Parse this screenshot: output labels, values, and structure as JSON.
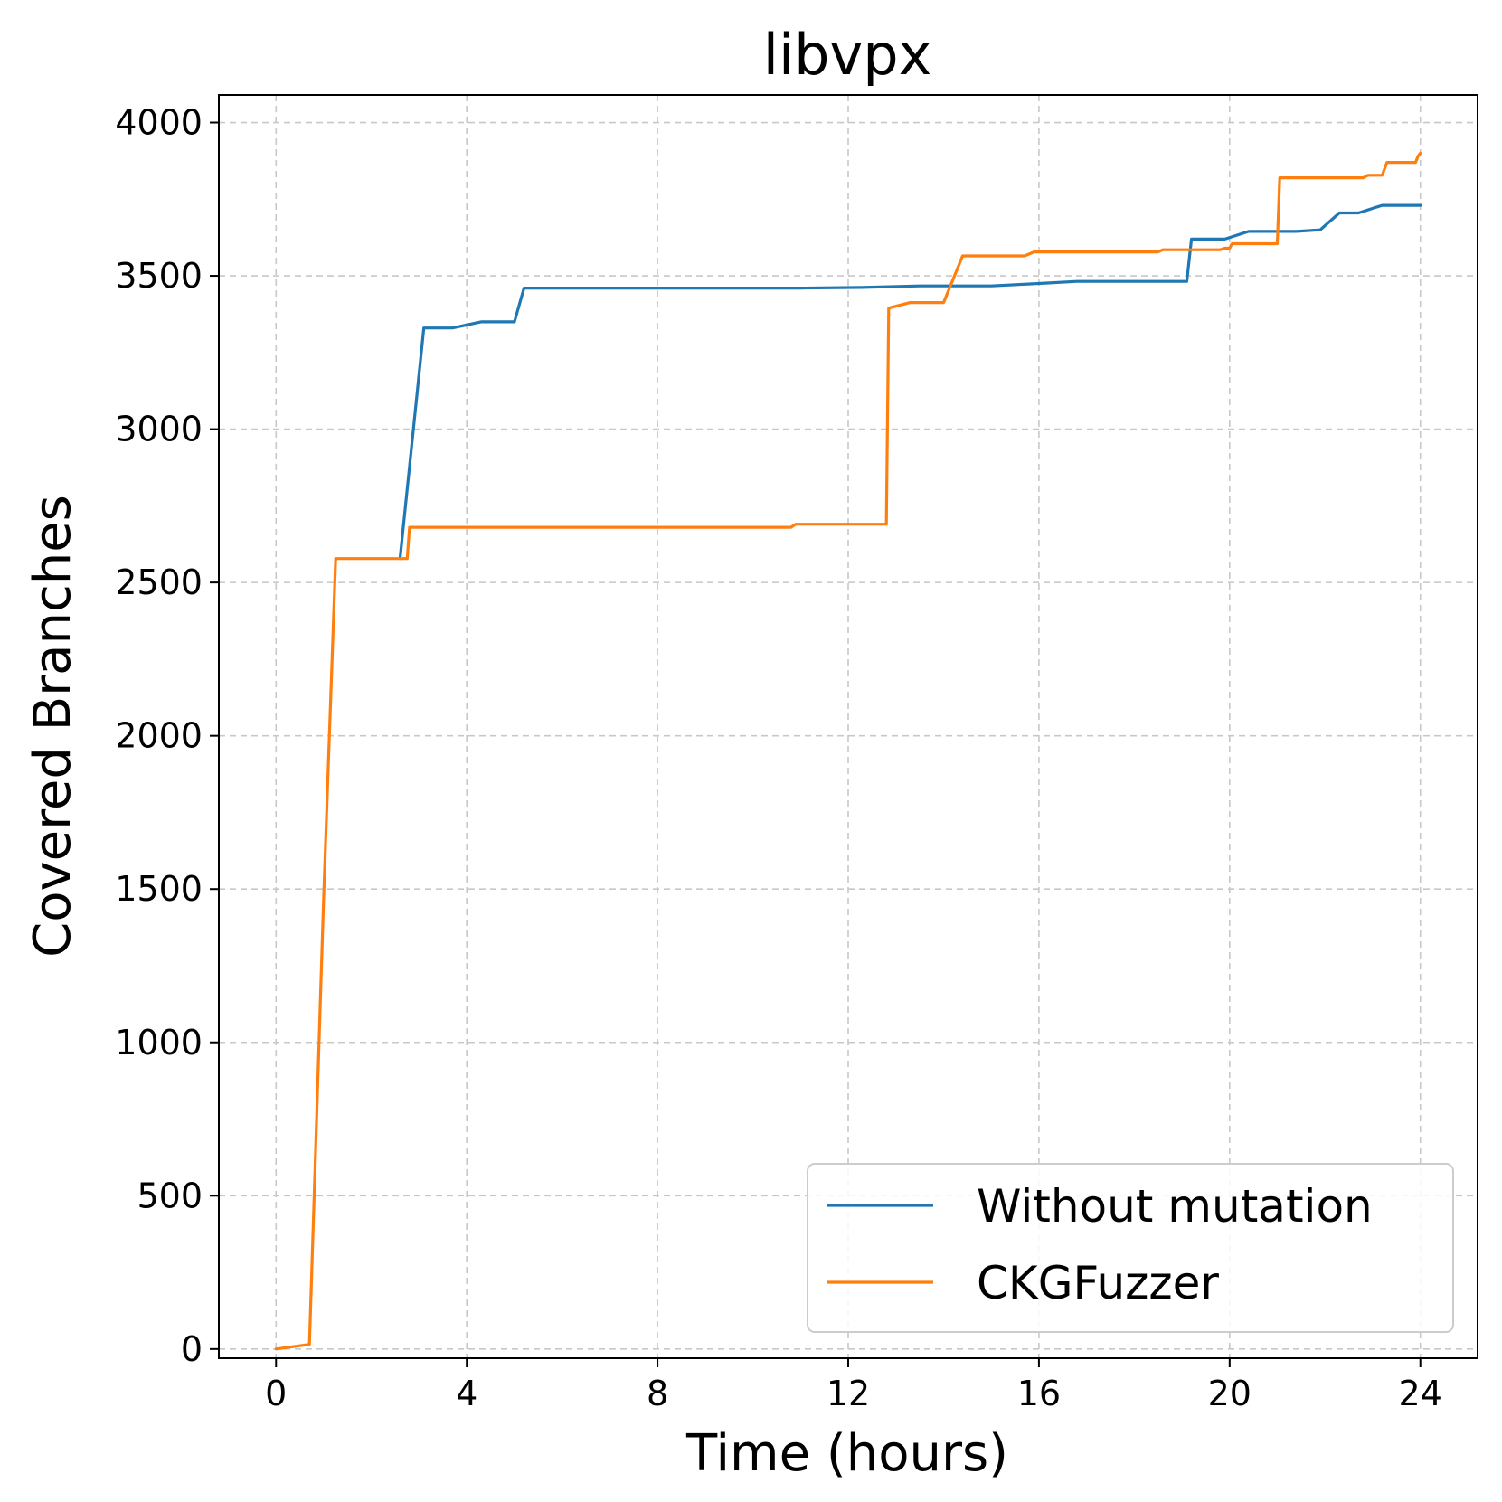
{
  "chart_data": {
    "type": "line",
    "title": "libvpx",
    "xlabel": "Time (hours)",
    "ylabel": "Covered Branches",
    "xlim": [
      -1.2,
      25.2
    ],
    "ylim": [
      -30,
      4090
    ],
    "xticks": [
      0,
      4,
      8,
      12,
      16,
      20,
      24
    ],
    "yticks": [
      0,
      500,
      1000,
      1500,
      2000,
      2500,
      3000,
      3500,
      4000
    ],
    "grid": true,
    "legend_position": "lower-right",
    "series": [
      {
        "name": "Without mutation",
        "color": "#1f77b4",
        "points": [
          [
            2.6,
            2578
          ],
          [
            3.1,
            3330
          ],
          [
            3.7,
            3330
          ],
          [
            4.3,
            3350
          ],
          [
            5.0,
            3350
          ],
          [
            5.2,
            3460
          ],
          [
            8.0,
            3460
          ],
          [
            11.0,
            3460
          ],
          [
            12.3,
            3462
          ],
          [
            13.5,
            3467
          ],
          [
            15.0,
            3467
          ],
          [
            16.0,
            3475
          ],
          [
            16.8,
            3482
          ],
          [
            19.1,
            3482
          ],
          [
            19.2,
            3620
          ],
          [
            19.9,
            3620
          ],
          [
            20.4,
            3645
          ],
          [
            21.4,
            3645
          ],
          [
            21.9,
            3650
          ],
          [
            22.3,
            3705
          ],
          [
            22.7,
            3705
          ],
          [
            23.2,
            3730
          ],
          [
            24.0,
            3730
          ]
        ]
      },
      {
        "name": "CKGFuzzer",
        "color": "#ff7f0e",
        "points": [
          [
            0.0,
            0
          ],
          [
            0.7,
            15
          ],
          [
            1.0,
            1480
          ],
          [
            1.25,
            2578
          ],
          [
            2.75,
            2578
          ],
          [
            2.8,
            2680
          ],
          [
            10.8,
            2680
          ],
          [
            10.9,
            2690
          ],
          [
            12.8,
            2690
          ],
          [
            12.85,
            3395
          ],
          [
            13.3,
            3413
          ],
          [
            14.0,
            3413
          ],
          [
            14.4,
            3565
          ],
          [
            15.7,
            3565
          ],
          [
            15.9,
            3578
          ],
          [
            18.5,
            3578
          ],
          [
            18.6,
            3585
          ],
          [
            19.8,
            3585
          ],
          [
            19.9,
            3590
          ],
          [
            20.0,
            3590
          ],
          [
            20.05,
            3605
          ],
          [
            21.0,
            3605
          ],
          [
            21.05,
            3820
          ],
          [
            22.8,
            3820
          ],
          [
            22.9,
            3828
          ],
          [
            23.2,
            3828
          ],
          [
            23.3,
            3870
          ],
          [
            23.9,
            3870
          ],
          [
            23.95,
            3890
          ],
          [
            24.0,
            3900
          ]
        ]
      }
    ]
  }
}
